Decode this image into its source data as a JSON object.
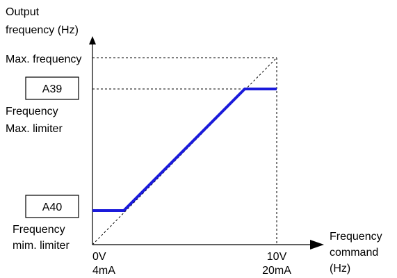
{
  "y_axis": {
    "label_line1": "Output",
    "label_line2": "frequency (Hz)"
  },
  "x_axis": {
    "label_line1": "Frequency",
    "label_line2": "command",
    "label_line3": "(Hz)"
  },
  "levels": {
    "max_frequency": "Max. frequency",
    "max_limiter_code": "A39",
    "max_limiter_line1": "Frequency",
    "max_limiter_line2": "Max. limiter",
    "min_limiter_code": "A40",
    "min_limiter_line1": "Frequency",
    "min_limiter_line2": "mim. limiter"
  },
  "ticks": {
    "zero_v": "0V",
    "zero_ma": "4mA",
    "max_v": "10V",
    "max_ma": "20mA"
  },
  "colors": {
    "output_line": "#1a1adb",
    "axes": "#000000"
  }
}
